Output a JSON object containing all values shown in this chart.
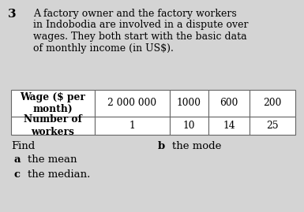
{
  "question_number": "3",
  "paragraph_lines": [
    "A factory owner and the factory workers",
    "in Indobodia are involved in a dispute over",
    "wages. They both start with the basic data",
    "of monthly income (in US$)."
  ],
  "table_headers": [
    "Wage ($ per\nmonth)",
    "2 000 000",
    "1000",
    "600",
    "200"
  ],
  "table_row2": [
    "Number of\nworkers",
    "1",
    "10",
    "14",
    "25"
  ],
  "find_label": "Find",
  "find_a_label": "a",
  "find_a_text": "the mean",
  "find_b_label": "b",
  "find_b_text": "the mode",
  "find_c_label": "c",
  "find_c_text": "the median.",
  "bg_color": "#d4d4d4",
  "table_bg": "#ffffff",
  "text_color": "#000000",
  "font_size_para": 9.0,
  "font_size_qnum": 11.0,
  "font_size_table": 8.8,
  "font_size_find": 9.5
}
